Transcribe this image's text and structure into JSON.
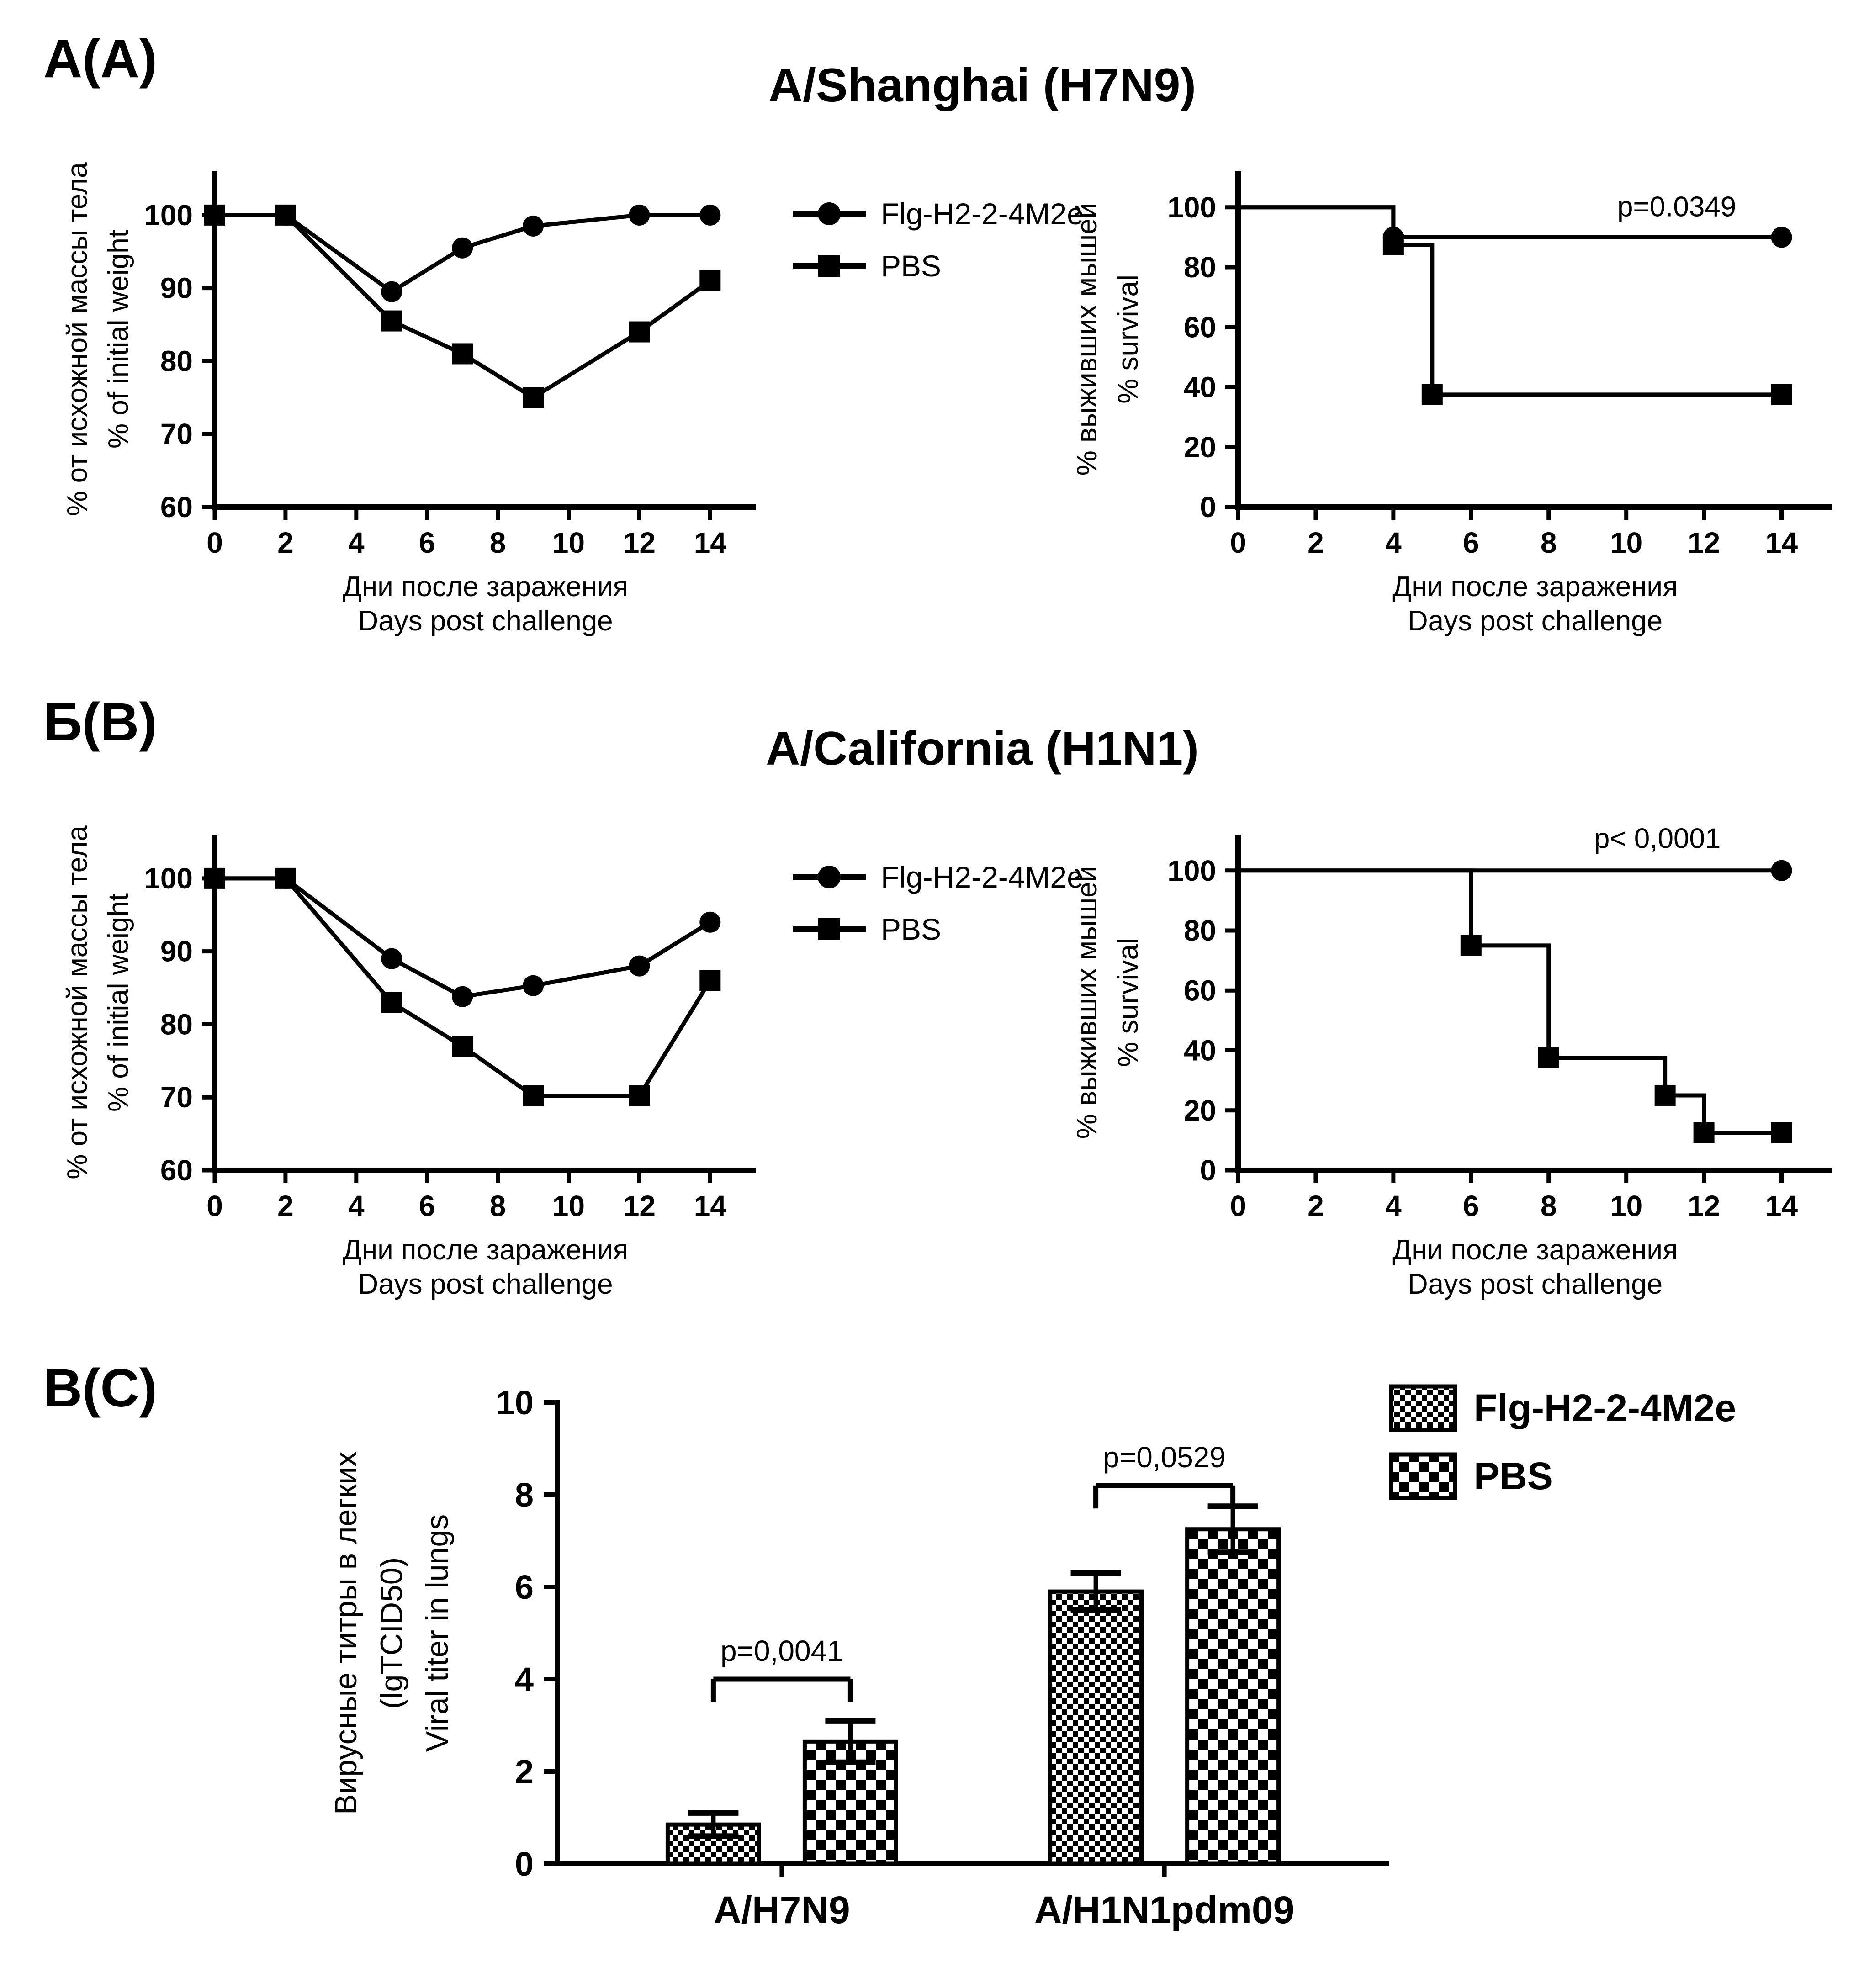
{
  "figure": {
    "background_color": "#ffffff",
    "ink_color": "#000000"
  },
  "chart_data": [
    {
      "id": "shanghai-weight",
      "type": "line",
      "panel_label": "А(A)",
      "panel_title": "A/Shanghai (H7N9)",
      "xlabel_ru": "Дни после заражения",
      "xlabel_en": "Days post challenge",
      "ylabel_ru": "% от исхожной массы тела",
      "ylabel_en": "% of initial weight",
      "xlim": [
        0,
        15.3
      ],
      "ylim": [
        60,
        106
      ],
      "xticks": [
        0,
        2,
        4,
        6,
        8,
        10,
        12,
        14
      ],
      "yticks": [
        60,
        70,
        80,
        90,
        100
      ],
      "grid": "off",
      "x": [
        0,
        2,
        5,
        7,
        9,
        12,
        14
      ],
      "series": [
        {
          "name": "Flg-H2-2-4M2e",
          "marker": "circle",
          "values": [
            100,
            100,
            89.5,
            95.5,
            98.5,
            100,
            100
          ]
        },
        {
          "name": "PBS",
          "marker": "square",
          "values": [
            100,
            100,
            85.5,
            81,
            75,
            84,
            91
          ]
        }
      ]
    },
    {
      "id": "shanghai-survival",
      "type": "line",
      "step": true,
      "annotation": "p=0.0349",
      "xlabel_ru": "Дни после заражения",
      "xlabel_en": "Days post challenge",
      "ylabel_ru": "% выживших мышей",
      "ylabel_en": "% survival",
      "xlim": [
        0,
        15.3
      ],
      "ylim": [
        0,
        112
      ],
      "xticks": [
        0,
        2,
        4,
        6,
        8,
        10,
        12,
        14
      ],
      "yticks": [
        0,
        20,
        40,
        60,
        80,
        100
      ],
      "grid": "off",
      "series": [
        {
          "name": "Flg-H2-2-4M2e",
          "marker": "circle",
          "points": [
            [
              0,
              100
            ],
            [
              4,
              100
            ],
            [
              4,
              90
            ],
            [
              14,
              90
            ]
          ],
          "marker_points": [
            [
              4,
              90
            ],
            [
              14,
              90
            ]
          ]
        },
        {
          "name": "PBS",
          "marker": "square",
          "points": [
            [
              0,
              100
            ],
            [
              4,
              100
            ],
            [
              4,
              87.5
            ],
            [
              5,
              87.5
            ],
            [
              5,
              37.5
            ],
            [
              14,
              37.5
            ]
          ],
          "marker_points": [
            [
              4,
              87.5
            ],
            [
              5,
              37.5
            ],
            [
              14,
              37.5
            ]
          ]
        }
      ]
    },
    {
      "id": "california-weight",
      "type": "line",
      "panel_label": "Б(B)",
      "panel_title": "A/California (H1N1)",
      "xlabel_ru": "Дни после заражения",
      "xlabel_en": "Days post challenge",
      "ylabel_ru": "% от исхожной массы тела",
      "ylabel_en": "% of initial weight",
      "xlim": [
        0,
        15.3
      ],
      "ylim": [
        60,
        106
      ],
      "xticks": [
        0,
        2,
        4,
        6,
        8,
        10,
        12,
        14
      ],
      "yticks": [
        60,
        70,
        80,
        90,
        100
      ],
      "grid": "off",
      "x": [
        0,
        2,
        5,
        7,
        9,
        12,
        14
      ],
      "series": [
        {
          "name": "Flg-H2-2-4M2e",
          "marker": "circle",
          "values": [
            100,
            100,
            89,
            83.8,
            85.3,
            88,
            94
          ]
        },
        {
          "name": "PBS",
          "marker": "square",
          "values": [
            100,
            100,
            83,
            77,
            70.2,
            70.2,
            86
          ]
        }
      ]
    },
    {
      "id": "california-survival",
      "type": "line",
      "step": true,
      "annotation": "p< 0,0001",
      "xlabel_ru": "Дни после заражения",
      "xlabel_en": "Days post challenge",
      "ylabel_ru": "% выживших мышей",
      "ylabel_en": "% survival",
      "xlim": [
        0,
        15.3
      ],
      "ylim": [
        0,
        112
      ],
      "xticks": [
        0,
        2,
        4,
        6,
        8,
        10,
        12,
        14
      ],
      "yticks": [
        0,
        20,
        40,
        60,
        80,
        100
      ],
      "grid": "off",
      "series": [
        {
          "name": "Flg-H2-2-4M2e",
          "marker": "circle",
          "points": [
            [
              0,
              100
            ],
            [
              14,
              100
            ]
          ],
          "marker_points": [
            [
              14,
              100
            ]
          ]
        },
        {
          "name": "PBS",
          "marker": "square",
          "points": [
            [
              0,
              100
            ],
            [
              6,
              100
            ],
            [
              6,
              75
            ],
            [
              8,
              75
            ],
            [
              8,
              37.5
            ],
            [
              11,
              37.5
            ],
            [
              11,
              25
            ],
            [
              12,
              25
            ],
            [
              12,
              12.5
            ],
            [
              14,
              12.5
            ]
          ],
          "marker_points": [
            [
              6,
              75
            ],
            [
              8,
              37.5
            ],
            [
              11,
              25
            ],
            [
              12,
              12.5
            ],
            [
              14,
              12.5
            ]
          ]
        }
      ]
    },
    {
      "id": "lung-viral-titer",
      "type": "bar",
      "panel_label": "В(C)",
      "ylabel_ru": "Вирусные титры в легких",
      "ylabel_ru2": "(lgTCID50)",
      "ylabel_en": "Viral titer in lungs",
      "ylim": [
        0,
        10
      ],
      "yticks": [
        0,
        2,
        4,
        6,
        8,
        10
      ],
      "grid": "off",
      "categories": [
        "A/H7N9",
        "A/H1N1pdm09"
      ],
      "series": [
        {
          "name": "Flg-H2-2-4M2e",
          "pattern": "checker-fine",
          "values": [
            0.85,
            5.9
          ],
          "errors": [
            0.25,
            0.4
          ]
        },
        {
          "name": "PBS",
          "pattern": "checker-coarse",
          "values": [
            2.65,
            7.25
          ],
          "errors": [
            0.45,
            0.5
          ]
        }
      ],
      "comparisons": [
        {
          "label": "p=0,0041",
          "group": 0,
          "y": 4.0
        },
        {
          "label": "p=0,0529",
          "group": 1,
          "y": 8.2
        }
      ]
    }
  ]
}
